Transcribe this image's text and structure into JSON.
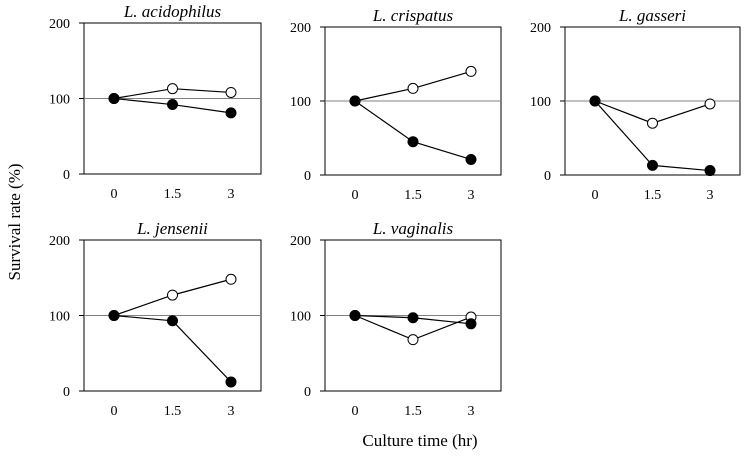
{
  "figure": {
    "ylabel": "Survival rate (%)",
    "xlabel": "Culture time (hr)"
  },
  "chart_data": [
    {
      "type": "line",
      "title": "L. acidophilus",
      "x": [
        0,
        1.5,
        3
      ],
      "xticks": [
        "0",
        "1.5",
        "3"
      ],
      "ylim": [
        0,
        200
      ],
      "yticks": [
        "0",
        "100",
        "200"
      ],
      "reference_line": 100,
      "series": [
        {
          "name": "open",
          "marker": "open-circle",
          "values": [
            100,
            113,
            108
          ]
        },
        {
          "name": "filled",
          "marker": "filled-circle",
          "values": [
            100,
            92,
            81
          ]
        }
      ]
    },
    {
      "type": "line",
      "title": "L. crispatus",
      "x": [
        0,
        1.5,
        3
      ],
      "xticks": [
        "0",
        "1.5",
        "3"
      ],
      "ylim": [
        0,
        200
      ],
      "yticks": [
        "0",
        "100",
        "200"
      ],
      "reference_line": 100,
      "series": [
        {
          "name": "open",
          "marker": "open-circle",
          "values": [
            100,
            117,
            140
          ]
        },
        {
          "name": "filled",
          "marker": "filled-circle",
          "values": [
            100,
            45,
            21
          ]
        }
      ]
    },
    {
      "type": "line",
      "title": "L. gasseri",
      "x": [
        0,
        1.5,
        3
      ],
      "xticks": [
        "0",
        "1.5",
        "3"
      ],
      "ylim": [
        0,
        200
      ],
      "yticks": [
        "0",
        "100",
        "200"
      ],
      "reference_line": 100,
      "series": [
        {
          "name": "open",
          "marker": "open-circle",
          "values": [
            100,
            70,
            96
          ]
        },
        {
          "name": "filled",
          "marker": "filled-circle",
          "values": [
            100,
            13,
            6
          ]
        }
      ]
    },
    {
      "type": "line",
      "title": "L. jensenii",
      "x": [
        0,
        1.5,
        3
      ],
      "xticks": [
        "0",
        "1.5",
        "3"
      ],
      "ylim": [
        0,
        200
      ],
      "yticks": [
        "0",
        "100",
        "200"
      ],
      "reference_line": 100,
      "series": [
        {
          "name": "open",
          "marker": "open-circle",
          "values": [
            100,
            127,
            148
          ]
        },
        {
          "name": "filled",
          "marker": "filled-circle",
          "values": [
            100,
            93,
            12
          ]
        }
      ]
    },
    {
      "type": "line",
      "title": "L. vaginalis",
      "x": [
        0,
        1.5,
        3
      ],
      "xticks": [
        "0",
        "1.5",
        "3"
      ],
      "ylim": [
        0,
        200
      ],
      "yticks": [
        "0",
        "100",
        "200"
      ],
      "reference_line": 100,
      "series": [
        {
          "name": "open",
          "marker": "open-circle",
          "values": [
            100,
            68,
            98
          ]
        },
        {
          "name": "filled",
          "marker": "filled-circle",
          "values": [
            100,
            97,
            89
          ]
        }
      ]
    }
  ]
}
